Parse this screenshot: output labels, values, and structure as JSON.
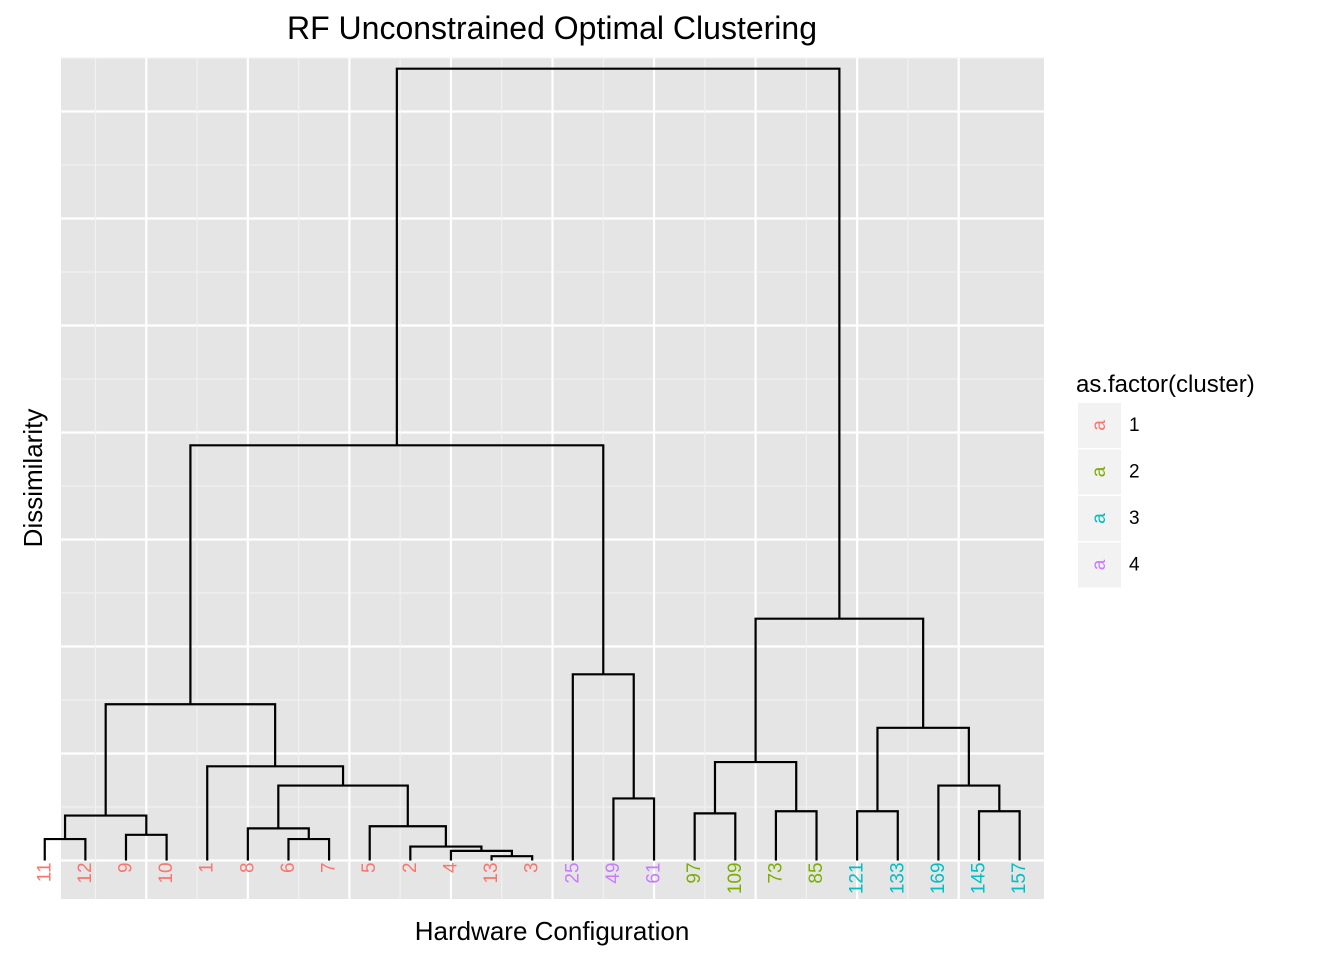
{
  "chart_data": {
    "type": "dendrogram",
    "title": "RF Unconstrained Optimal Clustering",
    "xlabel": "Hardware Configuration",
    "ylabel": "Dissimilarity",
    "y_ticks_labeled": false,
    "grid": true,
    "legend": {
      "title": "as.factor(cluster)",
      "placement": "right",
      "key_glyph": "a",
      "entries": [
        {
          "label": "1",
          "color": "#F8766D"
        },
        {
          "label": "2",
          "color": "#7CAE00"
        },
        {
          "label": "3",
          "color": "#00BFC4"
        },
        {
          "label": "4",
          "color": "#C77CFF"
        }
      ]
    },
    "leaves": [
      {
        "label": "11",
        "cluster": 1
      },
      {
        "label": "12",
        "cluster": 1
      },
      {
        "label": "9",
        "cluster": 1
      },
      {
        "label": "10",
        "cluster": 1
      },
      {
        "label": "1",
        "cluster": 1
      },
      {
        "label": "8",
        "cluster": 1
      },
      {
        "label": "6",
        "cluster": 1
      },
      {
        "label": "7",
        "cluster": 1
      },
      {
        "label": "5",
        "cluster": 1
      },
      {
        "label": "2",
        "cluster": 1
      },
      {
        "label": "4",
        "cluster": 1
      },
      {
        "label": "13",
        "cluster": 1
      },
      {
        "label": "3",
        "cluster": 1
      },
      {
        "label": "25",
        "cluster": 4
      },
      {
        "label": "49",
        "cluster": 4
      },
      {
        "label": "61",
        "cluster": 4
      },
      {
        "label": "97",
        "cluster": 2
      },
      {
        "label": "109",
        "cluster": 2
      },
      {
        "label": "73",
        "cluster": 2
      },
      {
        "label": "85",
        "cluster": 2
      },
      {
        "label": "121",
        "cluster": 3
      },
      {
        "label": "133",
        "cluster": 3
      },
      {
        "label": "169",
        "cluster": 3
      },
      {
        "label": "145",
        "cluster": 3
      },
      {
        "label": "157",
        "cluster": 3
      }
    ],
    "ylim": [
      -0.18,
      3.75
    ],
    "merges": [
      {
        "left": 0,
        "right": 1,
        "height": 0.1
      },
      {
        "left": 2,
        "right": 3,
        "height": 0.12
      },
      {
        "left": 14,
        "right": 15,
        "height": 0.29
      },
      {
        "left": 11,
        "right": 12,
        "height": 0.02
      },
      {
        "left": 6,
        "right": 7,
        "height": 0.1
      },
      {
        "left": 16,
        "right": 17,
        "height": 0.22
      },
      {
        "left": 18,
        "right": 19,
        "height": 0.23
      },
      {
        "left": 20,
        "right": 21,
        "height": 0.23
      },
      {
        "left": 23,
        "right": 24,
        "height": 0.23
      },
      {
        "left": 10,
        "right": 28,
        "height": 0.045
      },
      {
        "left": 9,
        "right": 34,
        "height": 0.065
      },
      {
        "left": 8,
        "right": 35,
        "height": 0.16
      },
      {
        "left": 5,
        "right": 29,
        "height": 0.15
      },
      {
        "left": 37,
        "right": 36,
        "height": 0.35
      },
      {
        "left": 4,
        "right": 38,
        "height": 0.44
      },
      {
        "left": 25,
        "right": 26,
        "height": 0.21
      },
      {
        "left": 22,
        "right": 33,
        "height": 0.35
      },
      {
        "left": 13,
        "right": 27,
        "height": 0.87
      },
      {
        "left": 30,
        "right": 31,
        "height": 0.46
      },
      {
        "left": 32,
        "right": 41,
        "height": 0.62
      },
      {
        "left": 40,
        "right": 39,
        "height": 0.73
      },
      {
        "left": 43,
        "right": 44,
        "height": 1.13
      },
      {
        "left": 42,
        "right": 45,
        "height": 1.94
      },
      {
        "left": 46,
        "right": 47,
        "height": 3.7
      }
    ]
  }
}
